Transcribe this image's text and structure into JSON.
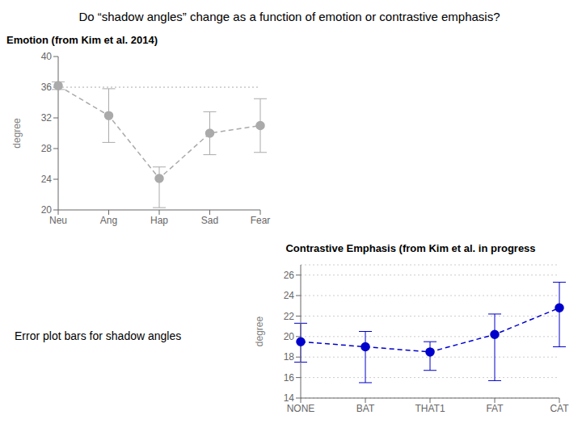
{
  "chart_data": [
    {
      "type": "line",
      "title": "Do “shadow angles” change as a function of emotion or contrastive emphasis?",
      "subtitle": "Emotion (from Kim et al. 2014)",
      "annotation": "Error plot bars for shadow angles",
      "categories": [
        "Neu",
        "Ang",
        "Hap",
        "Sad",
        "Fear"
      ],
      "values": [
        36.2,
        32.3,
        24.1,
        30.0,
        31.0
      ],
      "error_low": [
        0.5,
        3.5,
        3.8,
        2.8,
        3.5
      ],
      "error_high": [
        0.5,
        3.5,
        1.5,
        2.8,
        3.5
      ],
      "ylabel": "degree",
      "ylim": [
        20,
        40
      ],
      "yticks": [
        20,
        24,
        28,
        32,
        36,
        40
      ],
      "reference_line": 36.0,
      "grid": false,
      "color": "#aaaaaa",
      "marker": "circle",
      "line_style": "dashed"
    },
    {
      "type": "line",
      "subtitle": "Contrastive Emphasis  (from Kim et al. in progress",
      "categories": [
        "NONE",
        "BAT",
        "THAT1",
        "FAT",
        "CAT"
      ],
      "values": [
        19.5,
        19.0,
        18.5,
        20.2,
        22.8
      ],
      "error_low": [
        2.0,
        3.5,
        1.8,
        4.5,
        3.8
      ],
      "error_high": [
        1.8,
        1.5,
        1.0,
        2.0,
        2.5
      ],
      "ylabel": "degree",
      "ylim": [
        14,
        27
      ],
      "yticks": [
        14,
        16,
        18,
        20,
        22,
        24,
        26
      ],
      "grid": true,
      "color": "#0000cc",
      "marker": "circle",
      "line_style": "dashed"
    }
  ]
}
